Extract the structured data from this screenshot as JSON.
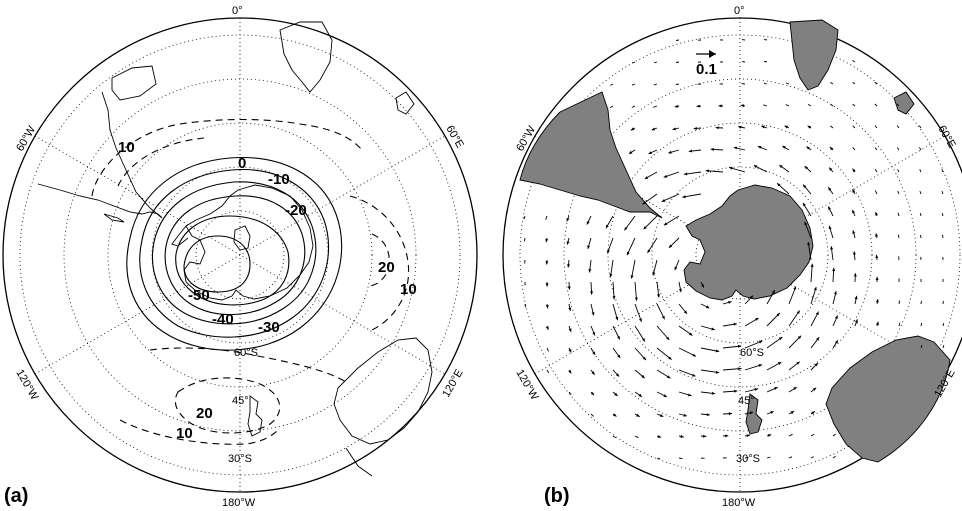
{
  "figure": {
    "panels": [
      {
        "id": "a",
        "label": "(a)",
        "field": "contours",
        "longitude_labels": {
          "top": "0°",
          "bottom": "180°W",
          "upper_left": "60°W",
          "upper_right": "60°E",
          "lower_left": "120°W",
          "lower_right": "120°E"
        },
        "latitude_labels": [
          "60°S",
          "45°",
          "30°S"
        ],
        "contour_labels": [
          "10",
          "0",
          "-10",
          "-20",
          "-30",
          "-40",
          "-50",
          "20",
          "10",
          "20",
          "10"
        ]
      },
      {
        "id": "b",
        "label": "(b)",
        "field": "vectors",
        "reference_vector_label": "0.1",
        "longitude_labels": {
          "top": "0°",
          "bottom": "180°W",
          "upper_left": "60°W",
          "upper_right": "60°E",
          "lower_left": "120°W",
          "lower_right": "120°E"
        },
        "latitude_labels": [
          "60°S",
          "45°",
          "30°S"
        ]
      }
    ]
  }
}
